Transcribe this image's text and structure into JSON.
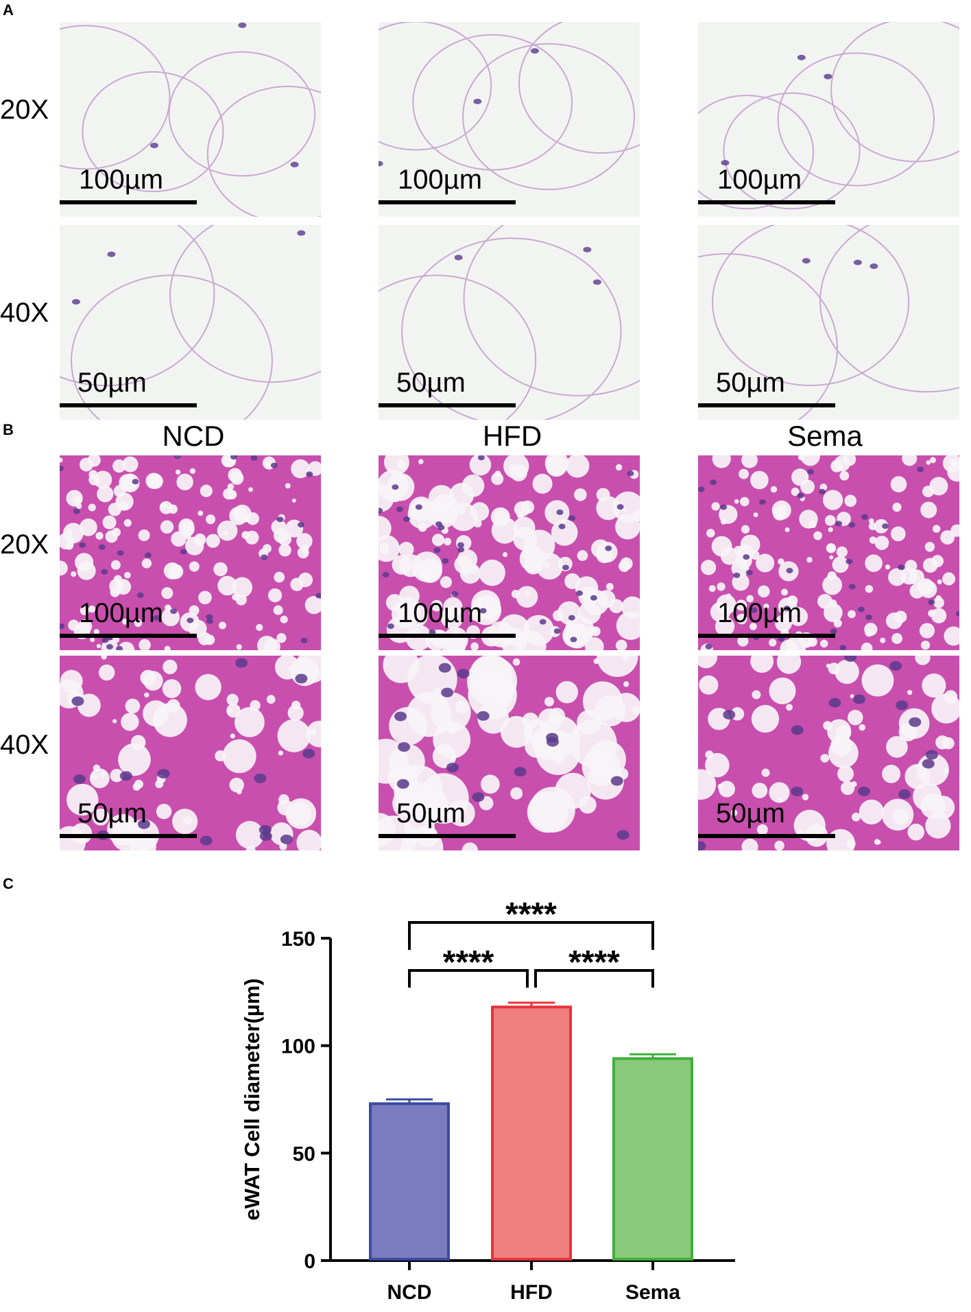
{
  "panels": {
    "a": {
      "letter": "A"
    },
    "b": {
      "letter": "B"
    },
    "c": {
      "letter": "C"
    }
  },
  "magnifications": [
    "20X",
    "40X"
  ],
  "groups": [
    "NCD",
    "HFD",
    "Sema"
  ],
  "scale_bars": {
    "mag20": "100µm",
    "mag40": "50µm"
  },
  "colors": {
    "adipose_bg": "#f2f4f2",
    "adipose_membrane": "#c9a8d2",
    "nucleus": "#5a3a8c",
    "liver_tissue": "#c84fae",
    "liver_vacuole": "#f7f4f7",
    "ncd": "#7b7cbf",
    "ncd_edge": "#3a4aa0",
    "hfd": "#f07f7f",
    "hfd_edge": "#e8323a",
    "sema": "#88c97a",
    "sema_edge": "#3fae3a"
  },
  "chart_data": {
    "type": "bar",
    "categories": [
      "NCD",
      "HFD",
      "Sema"
    ],
    "values": [
      73,
      118,
      94
    ],
    "errors": [
      2,
      2,
      2
    ],
    "ylabel": "eWAT Cell diameter(µm)",
    "ylim": [
      0,
      150
    ],
    "yticks": [
      0,
      50,
      100,
      150
    ],
    "significance": [
      {
        "from": "NCD",
        "to": "HFD",
        "label": "****"
      },
      {
        "from": "HFD",
        "to": "Sema",
        "label": "****"
      },
      {
        "from": "NCD",
        "to": "Sema",
        "label": "****"
      }
    ],
    "grid": false,
    "legend": "none"
  }
}
